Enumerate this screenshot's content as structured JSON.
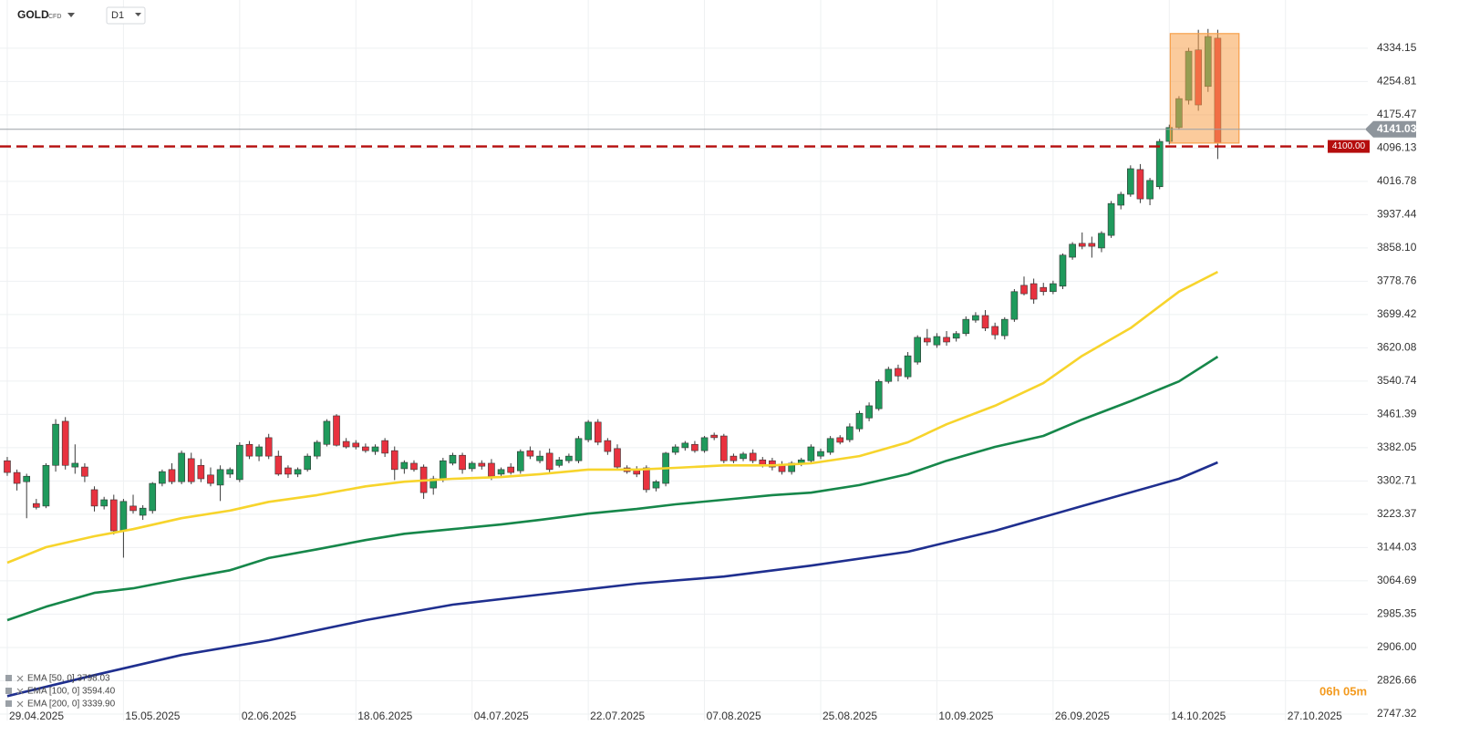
{
  "chart_data": {
    "type": "candlestick",
    "symbol": "GOLD",
    "instrument_type": "CFD",
    "timeframe": "D1",
    "up_color": "#1f9a5c",
    "down_color": "#e8323f",
    "grid": true,
    "ylim": [
      2732,
      4449
    ],
    "xlim": [
      -0.75,
      140.5
    ],
    "yticks": [
      4334.15,
      4254.81,
      4175.47,
      4096.13,
      4016.78,
      3937.44,
      {
        "value": 3858.1,
        "label": "3858.10"
      },
      3778.76,
      3699.42,
      3620.08,
      3540.74,
      3461.39,
      3382.05,
      3302.71,
      3223.37,
      3144.03,
      3064.69,
      2985.35,
      {
        "value": 2906,
        "label": "2906.00"
      },
      2826.66,
      2747.32
    ],
    "xticks": [
      {
        "value": 0,
        "label": "29.04.2025"
      },
      {
        "value": 12,
        "label": "15.05.2025"
      },
      {
        "value": 24,
        "label": "02.06.2025"
      },
      {
        "value": 36,
        "label": "18.06.2025"
      },
      {
        "value": 48,
        "label": "04.07.2025"
      },
      {
        "value": 60,
        "label": "22.07.2025"
      },
      {
        "value": 72,
        "label": "07.08.2025"
      },
      {
        "value": 84,
        "label": "25.08.2025"
      },
      {
        "value": 96,
        "label": "10.09.2025"
      },
      {
        "value": 108,
        "label": "26.09.2025"
      },
      {
        "value": 120,
        "label": "14.10.2025"
      },
      {
        "value": 132,
        "label": "27.10.2025"
      }
    ],
    "candles": [
      [
        3351,
        3360,
        3315,
        3323
      ],
      [
        3323,
        3330,
        3280,
        3297
      ],
      [
        3301,
        3320,
        3214,
        3314
      ],
      [
        3249,
        3260,
        3235,
        3240
      ],
      [
        3243,
        3345,
        3238,
        3340
      ],
      [
        3340,
        3450,
        3325,
        3438
      ],
      [
        3445,
        3455,
        3330,
        3340
      ],
      [
        3336,
        3390,
        3320,
        3345
      ],
      [
        3336,
        3345,
        3300,
        3314
      ],
      [
        3282,
        3290,
        3230,
        3243
      ],
      [
        3243,
        3265,
        3235,
        3258
      ],
      [
        3258,
        3270,
        3175,
        3184
      ],
      [
        3184,
        3260,
        3120,
        3254
      ],
      [
        3243,
        3270,
        3225,
        3232
      ],
      [
        3221,
        3245,
        3210,
        3238
      ],
      [
        3232,
        3300,
        3225,
        3297
      ],
      [
        3297,
        3330,
        3290,
        3325
      ],
      [
        3330,
        3345,
        3295,
        3301
      ],
      [
        3301,
        3375,
        3295,
        3369
      ],
      [
        3356,
        3370,
        3295,
        3301
      ],
      [
        3340,
        3355,
        3300,
        3308
      ],
      [
        3317,
        3335,
        3290,
        3297
      ],
      [
        3293,
        3340,
        3255,
        3330
      ],
      [
        3319,
        3335,
        3310,
        3330
      ],
      [
        3306,
        3395,
        3300,
        3388
      ],
      [
        3390,
        3398,
        3355,
        3362
      ],
      [
        3362,
        3390,
        3350,
        3384
      ],
      [
        3406,
        3415,
        3355,
        3362
      ],
      [
        3362,
        3375,
        3315,
        3319
      ],
      [
        3334,
        3340,
        3310,
        3319
      ],
      [
        3319,
        3335,
        3312,
        3330
      ],
      [
        3330,
        3368,
        3325,
        3362
      ],
      [
        3362,
        3400,
        3355,
        3395
      ],
      [
        3390,
        3450,
        3385,
        3445
      ],
      [
        3458,
        3462,
        3385,
        3388
      ],
      [
        3397,
        3405,
        3380,
        3384
      ],
      [
        3393,
        3400,
        3378,
        3384
      ],
      [
        3384,
        3392,
        3370,
        3375
      ],
      [
        3373,
        3390,
        3365,
        3384
      ],
      [
        3399,
        3405,
        3360,
        3369
      ],
      [
        3375,
        3385,
        3305,
        3330
      ],
      [
        3332,
        3352,
        3320,
        3347
      ],
      [
        3345,
        3352,
        3325,
        3330
      ],
      [
        3336,
        3342,
        3260,
        3275
      ],
      [
        3286,
        3315,
        3270,
        3308
      ],
      [
        3308,
        3358,
        3300,
        3351
      ],
      [
        3345,
        3370,
        3340,
        3364
      ],
      [
        3364,
        3370,
        3320,
        3330
      ],
      [
        3332,
        3350,
        3325,
        3345
      ],
      [
        3345,
        3352,
        3330,
        3338
      ],
      [
        3345,
        3355,
        3305,
        3314
      ],
      [
        3319,
        3335,
        3310,
        3330
      ],
      [
        3336,
        3345,
        3318,
        3323
      ],
      [
        3327,
        3378,
        3320,
        3373
      ],
      [
        3375,
        3385,
        3355,
        3362
      ],
      [
        3351,
        3375,
        3345,
        3362
      ],
      [
        3369,
        3380,
        3322,
        3330
      ],
      [
        3340,
        3360,
        3335,
        3353
      ],
      [
        3351,
        3368,
        3345,
        3362
      ],
      [
        3351,
        3410,
        3345,
        3404
      ],
      [
        3401,
        3448,
        3395,
        3443
      ],
      [
        3443,
        3450,
        3388,
        3395
      ],
      [
        3399,
        3405,
        3365,
        3373
      ],
      [
        3380,
        3390,
        3330,
        3336
      ],
      [
        3334,
        3340,
        3320,
        3325
      ],
      [
        3330,
        3338,
        3312,
        3319
      ],
      [
        3334,
        3340,
        3275,
        3282
      ],
      [
        3286,
        3305,
        3278,
        3301
      ],
      [
        3297,
        3372,
        3290,
        3369
      ],
      [
        3371,
        3390,
        3365,
        3384
      ],
      [
        3382,
        3398,
        3375,
        3393
      ],
      [
        3390,
        3398,
        3370,
        3375
      ],
      [
        3375,
        3410,
        3370,
        3406
      ],
      [
        3412,
        3418,
        3400,
        3406
      ],
      [
        3410,
        3415,
        3345,
        3351
      ],
      [
        3362,
        3368,
        3345,
        3351
      ],
      [
        3356,
        3372,
        3350,
        3367
      ],
      [
        3369,
        3378,
        3345,
        3351
      ],
      [
        3353,
        3360,
        3335,
        3340
      ],
      [
        3351,
        3358,
        3328,
        3336
      ],
      [
        3343,
        3350,
        3318,
        3325
      ],
      [
        3325,
        3350,
        3318,
        3345
      ],
      [
        3343,
        3358,
        3338,
        3353
      ],
      [
        3351,
        3390,
        3345,
        3384
      ],
      [
        3362,
        3380,
        3355,
        3373
      ],
      [
        3371,
        3410,
        3365,
        3404
      ],
      [
        3406,
        3412,
        3390,
        3395
      ],
      [
        3401,
        3440,
        3395,
        3432
      ],
      [
        3427,
        3470,
        3420,
        3464
      ],
      [
        3453,
        3490,
        3445,
        3482
      ],
      [
        3475,
        3545,
        3470,
        3540
      ],
      [
        3540,
        3575,
        3535,
        3569
      ],
      [
        3571,
        3580,
        3540,
        3553
      ],
      [
        3551,
        3610,
        3545,
        3601
      ],
      [
        3586,
        3650,
        3580,
        3645
      ],
      [
        3643,
        3665,
        3625,
        3634
      ],
      [
        3627,
        3655,
        3620,
        3647
      ],
      [
        3645,
        3660,
        3625,
        3634
      ],
      [
        3643,
        3660,
        3635,
        3654
      ],
      [
        3654,
        3695,
        3648,
        3688
      ],
      [
        3686,
        3705,
        3680,
        3697
      ],
      [
        3697,
        3710,
        3660,
        3667
      ],
      [
        3671,
        3680,
        3640,
        3651
      ],
      [
        3649,
        3693,
        3640,
        3688
      ],
      [
        3688,
        3760,
        3682,
        3754
      ],
      [
        3769,
        3790,
        3745,
        3749
      ],
      [
        3773,
        3785,
        3725,
        3736
      ],
      [
        3764,
        3775,
        3745,
        3754
      ],
      [
        3754,
        3780,
        3748,
        3773
      ],
      [
        3767,
        3845,
        3760,
        3841
      ],
      [
        3836,
        3872,
        3830,
        3867
      ],
      [
        3869,
        3895,
        3855,
        3862
      ],
      [
        3869,
        3885,
        3835,
        3862
      ],
      [
        3858,
        3898,
        3848,
        3893
      ],
      [
        3888,
        3970,
        3882,
        3964
      ],
      [
        3960,
        3992,
        3950,
        3986
      ],
      [
        3986,
        4055,
        3980,
        4047
      ],
      [
        4045,
        4058,
        3965,
        3975
      ],
      [
        3975,
        4025,
        3960,
        4019
      ],
      [
        4004,
        4118,
        3998,
        4112
      ],
      [
        4112,
        4152,
        4105,
        4145
      ],
      [
        4145,
        4220,
        4140,
        4214
      ],
      [
        4210,
        4335,
        4200,
        4327
      ],
      [
        4330,
        4378,
        4185,
        4199
      ],
      [
        4243,
        4380,
        4230,
        4362
      ],
      [
        4358,
        4378,
        4070,
        4108
      ]
    ],
    "series": [
      {
        "name": "EMA [50, 0] 3798.03",
        "color": "#f7d42c",
        "x": [
          0,
          4,
          9,
          13,
          18,
          23,
          27,
          32,
          37,
          41,
          46,
          51,
          55,
          60,
          65,
          69,
          74,
          79,
          83,
          88,
          93,
          97,
          102,
          107,
          111,
          116,
          121,
          125
        ],
        "values": [
          3108,
          3145,
          3171,
          3188,
          3214,
          3232,
          3253,
          3269,
          3290,
          3301,
          3308,
          3312,
          3319,
          3330,
          3330,
          3334,
          3340,
          3340,
          3345,
          3362,
          3395,
          3438,
          3482,
          3536,
          3601,
          3667,
          3754,
          3801
        ]
      },
      {
        "name": "EMA [100, 0] 3594.40",
        "color": "#16874a",
        "x": [
          0,
          4,
          9,
          13,
          18,
          23,
          27,
          32,
          37,
          41,
          46,
          51,
          55,
          60,
          65,
          69,
          74,
          79,
          83,
          88,
          93,
          97,
          102,
          107,
          111,
          116,
          121,
          125
        ],
        "values": [
          2971,
          3003,
          3036,
          3047,
          3069,
          3090,
          3119,
          3140,
          3162,
          3177,
          3188,
          3199,
          3210,
          3225,
          3236,
          3247,
          3258,
          3269,
          3275,
          3293,
          3319,
          3351,
          3384,
          3410,
          3449,
          3493,
          3540,
          3599
        ]
      },
      {
        "name": "EMA [200, 0] 3339.90",
        "color": "#1f2f8f",
        "x": [
          0,
          9,
          18,
          27,
          37,
          46,
          55,
          65,
          74,
          83,
          93,
          102,
          111,
          121,
          125
        ],
        "values": [
          2790,
          2840,
          2888,
          2923,
          2971,
          3008,
          3032,
          3058,
          3075,
          3101,
          3134,
          3184,
          3243,
          3308,
          3347
        ]
      }
    ],
    "price_lines": [
      {
        "value": 4141.03,
        "color": "#9aa0a6",
        "style": "solid"
      },
      {
        "value": 4100,
        "label": "4100.00",
        "color": "#b50d0d",
        "style": "dashed"
      }
    ],
    "highlight": {
      "xlim": [
        120.1,
        127.2
      ],
      "ylim": [
        4108,
        4369
      ],
      "color": "#f7a04b"
    },
    "countdown": "06h 05m"
  }
}
